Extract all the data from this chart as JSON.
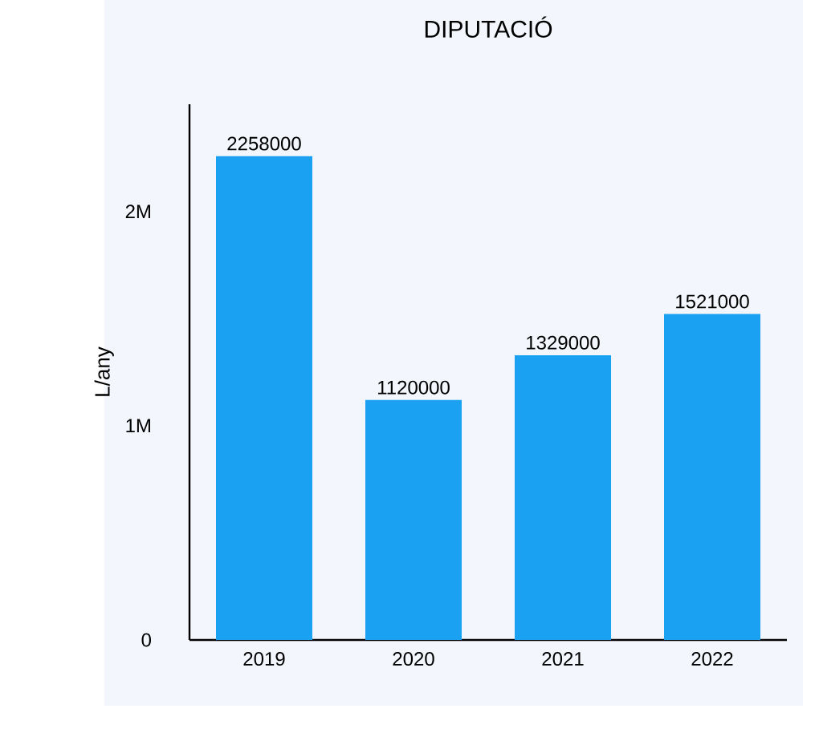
{
  "chart_data": {
    "type": "bar",
    "title": "DIPUTACIÓ",
    "ylabel": "L/any",
    "categories": [
      "2019",
      "2020",
      "2021",
      "2022"
    ],
    "values": [
      2258000,
      1120000,
      1329000,
      1521000
    ],
    "color": "#1ba1f2",
    "ylim": [
      0,
      2500000
    ],
    "yticks": [
      0,
      {
        "value": 1000000,
        "label": "1M"
      },
      {
        "value": 2000000,
        "label": "2M"
      }
    ],
    "data_labels": true,
    "grid": false
  }
}
